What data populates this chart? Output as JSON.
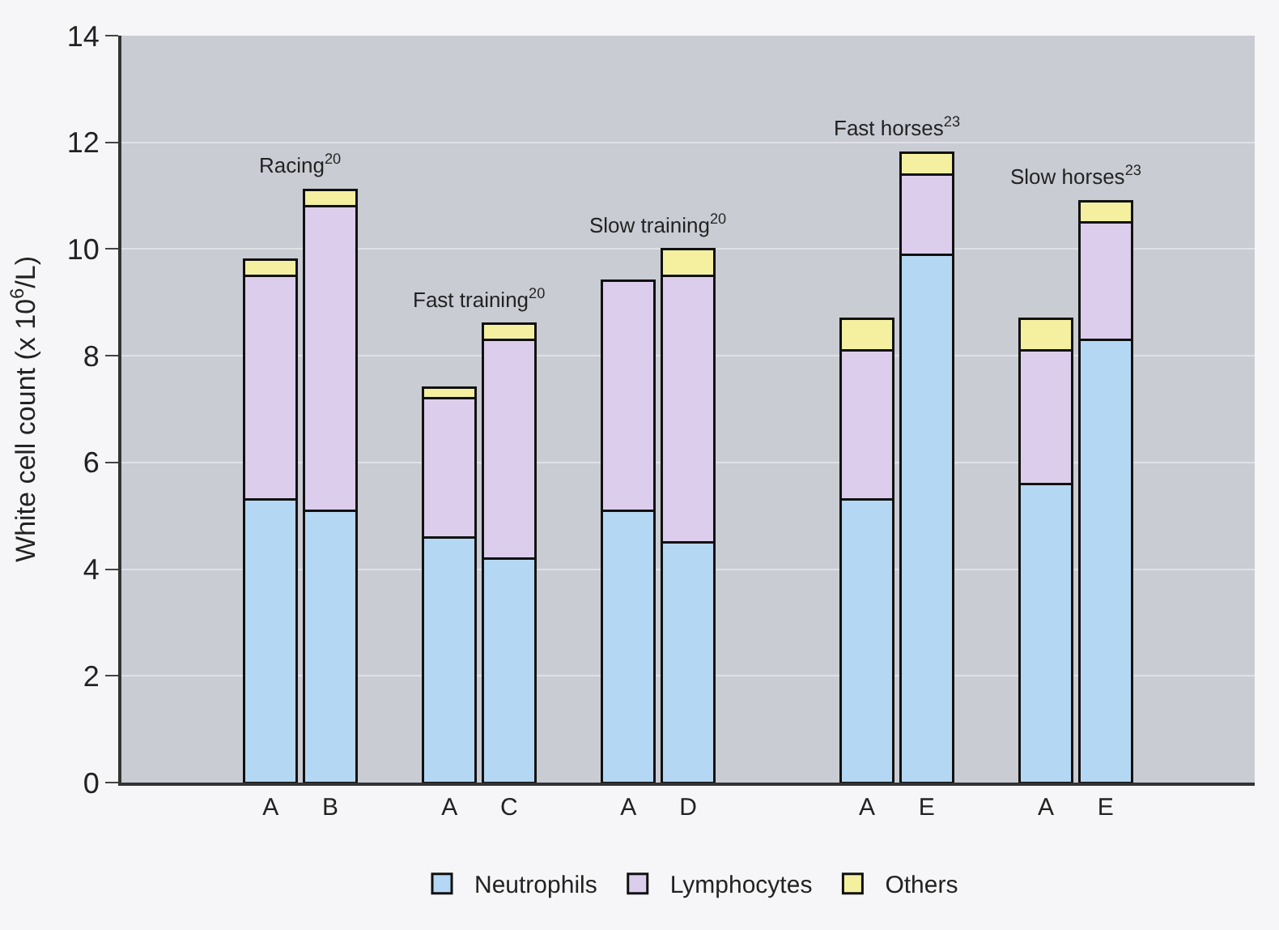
{
  "chart_data": {
    "type": "bar",
    "stacked": true,
    "ylabel": "White cell count (x 10$^{6}$/L)",
    "categories": [
      null,
      null,
      "A",
      "B",
      null,
      "A",
      "C",
      null,
      "A",
      "D",
      null,
      null,
      "A",
      "E",
      null,
      "A",
      "E",
      null,
      null
    ],
    "series": [
      {
        "name": "Neutrophils",
        "color": "#b4d8f4",
        "values": [
          null,
          null,
          5.3,
          5.1,
          null,
          4.6,
          4.2,
          null,
          5.1,
          4.5,
          null,
          null,
          5.3,
          9.9,
          null,
          5.6,
          8.3,
          null,
          null
        ]
      },
      {
        "name": "Lymphocytes",
        "color": "#dccdec",
        "values": [
          null,
          null,
          4.2,
          5.7,
          null,
          2.6,
          4.1,
          null,
          4.3,
          5.0,
          null,
          null,
          2.8,
          1.5,
          null,
          2.5,
          2.2,
          null,
          null
        ]
      },
      {
        "name": "Others",
        "color": "#f4f0a0",
        "values": [
          null,
          null,
          0.3,
          0.3,
          null,
          0.2,
          0.3,
          null,
          null,
          0.5,
          null,
          null,
          0.6,
          0.4,
          null,
          0.6,
          0.4,
          null,
          null
        ]
      }
    ],
    "annotations": [
      "Racing$^{20}$",
      "Fast training$^{20}$",
      "Slow training$^{20}$",
      "Fast horses$^{23}$",
      "Slow horses$^{23}$"
    ],
    "ylim": [
      0,
      14
    ],
    "yticks": [
      0,
      2,
      4,
      6,
      8,
      10,
      12,
      14
    ],
    "grid": "y",
    "legend": "bottom"
  }
}
